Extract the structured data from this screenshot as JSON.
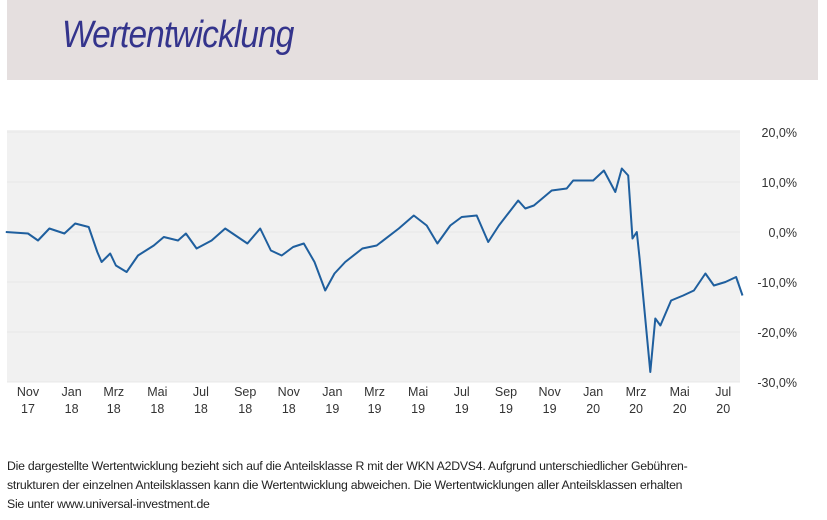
{
  "header": {
    "title": "Wertentwicklung"
  },
  "chart_data": {
    "type": "line",
    "title": "",
    "xlabel": "",
    "ylabel": "",
    "ylim": [
      -30,
      20
    ],
    "y_ticks": [
      "20,0%",
      "10,0%",
      "0,0%",
      "-10,0%",
      "-20,0%",
      "-30,0%"
    ],
    "y_tick_values": [
      20,
      10,
      0,
      -10,
      -20,
      -30
    ],
    "y_axis_position": "right",
    "x_ticks": [
      [
        "Nov",
        "17"
      ],
      [
        "Jan",
        "18"
      ],
      [
        "Mrz",
        "18"
      ],
      [
        "Mai",
        "18"
      ],
      [
        "Jul",
        "18"
      ],
      [
        "Sep",
        "18"
      ],
      [
        "Nov",
        "18"
      ],
      [
        "Jan",
        "19"
      ],
      [
        "Mrz",
        "19"
      ],
      [
        "Mai",
        "19"
      ],
      [
        "Jul",
        "19"
      ],
      [
        "Sep",
        "19"
      ],
      [
        "Nov",
        "19"
      ],
      [
        "Jan",
        "20"
      ],
      [
        "Mrz",
        "20"
      ],
      [
        "Mai",
        "20"
      ],
      [
        "Jul",
        "20"
      ]
    ],
    "x_tick_dates": [
      "2017-11-01",
      "2018-01-01",
      "2018-03-01",
      "2018-05-01",
      "2018-07-01",
      "2018-09-01",
      "2018-11-01",
      "2019-01-01",
      "2019-03-01",
      "2019-05-01",
      "2019-07-01",
      "2019-09-01",
      "2019-11-01",
      "2020-01-01",
      "2020-03-01",
      "2020-05-01",
      "2020-07-01"
    ],
    "grid": true,
    "line_color": "#1f5f9e",
    "series": [
      {
        "points": [
          [
            "2017-10-01",
            0
          ],
          [
            "2017-11-01",
            -0.3
          ],
          [
            "2017-11-15",
            -1.7
          ],
          [
            "2017-12-01",
            0.7
          ],
          [
            "2017-12-22",
            -0.3
          ],
          [
            "2018-01-06",
            1.7
          ],
          [
            "2018-01-25",
            1
          ],
          [
            "2018-02-06",
            -4
          ],
          [
            "2018-02-12",
            -6
          ],
          [
            "2018-02-24",
            -4.3
          ],
          [
            "2018-03-04",
            -6.7
          ],
          [
            "2018-03-19",
            -8
          ],
          [
            "2018-04-04",
            -4.7
          ],
          [
            "2018-04-26",
            -2.7
          ],
          [
            "2018-05-10",
            -1
          ],
          [
            "2018-05-30",
            -1.7
          ],
          [
            "2018-06-10",
            -0.3
          ],
          [
            "2018-06-25",
            -3.3
          ],
          [
            "2018-07-16",
            -1.7
          ],
          [
            "2018-08-04",
            0.7
          ],
          [
            "2018-09-04",
            -2.3
          ],
          [
            "2018-09-22",
            0.7
          ],
          [
            "2018-10-07",
            -3.7
          ],
          [
            "2018-10-22",
            -4.7
          ],
          [
            "2018-11-07",
            -3
          ],
          [
            "2018-11-22",
            -2.3
          ],
          [
            "2018-12-07",
            -6
          ],
          [
            "2018-12-22",
            -11.7
          ],
          [
            "2019-01-04",
            -8.3
          ],
          [
            "2019-01-19",
            -6
          ],
          [
            "2019-02-12",
            -3.3
          ],
          [
            "2019-03-04",
            -2.7
          ],
          [
            "2019-04-04",
            0.7
          ],
          [
            "2019-04-25",
            3.3
          ],
          [
            "2019-05-13",
            1.3
          ],
          [
            "2019-05-28",
            -2.3
          ],
          [
            "2019-06-15",
            1.3
          ],
          [
            "2019-07-01",
            3
          ],
          [
            "2019-07-22",
            3.3
          ],
          [
            "2019-08-07",
            -2
          ],
          [
            "2019-08-22",
            1.3
          ],
          [
            "2019-09-18",
            6.3
          ],
          [
            "2019-09-28",
            4.7
          ],
          [
            "2019-10-10",
            5.3
          ],
          [
            "2019-11-04",
            8.3
          ],
          [
            "2019-11-25",
            8.7
          ],
          [
            "2019-12-04",
            10.3
          ],
          [
            "2020-01-01",
            10.3
          ],
          [
            "2020-01-16",
            12.3
          ],
          [
            "2020-02-01",
            8
          ],
          [
            "2020-02-10",
            12.7
          ],
          [
            "2020-02-19",
            11.3
          ],
          [
            "2020-02-25",
            -1.3
          ],
          [
            "2020-03-02",
            0
          ],
          [
            "2020-03-06",
            -5.3
          ],
          [
            "2020-03-21",
            -28
          ],
          [
            "2020-03-28",
            -17.3
          ],
          [
            "2020-04-04",
            -18.7
          ],
          [
            "2020-04-19",
            -13.7
          ],
          [
            "2020-05-06",
            -12.7
          ],
          [
            "2020-05-21",
            -11.7
          ],
          [
            "2020-06-06",
            -8.3
          ],
          [
            "2020-06-18",
            -10.7
          ],
          [
            "2020-07-04",
            -10
          ],
          [
            "2020-07-19",
            -9
          ],
          [
            "2020-07-28",
            -12.7
          ]
        ]
      }
    ]
  },
  "footnote": {
    "lines": [
      "Die dargestellte Wertentwicklung bezieht sich auf die Anteilsklasse R mit der WKN A2DVS4. Aufgrund unterschiedlicher Gebühren-",
      "strukturen der einzelnen Anteilsklassen kann die Wertentwicklung abweichen. Die Wertentwicklungen aller Anteilsklassen erhalten",
      "Sie unter www.universal-investment.de"
    ]
  }
}
